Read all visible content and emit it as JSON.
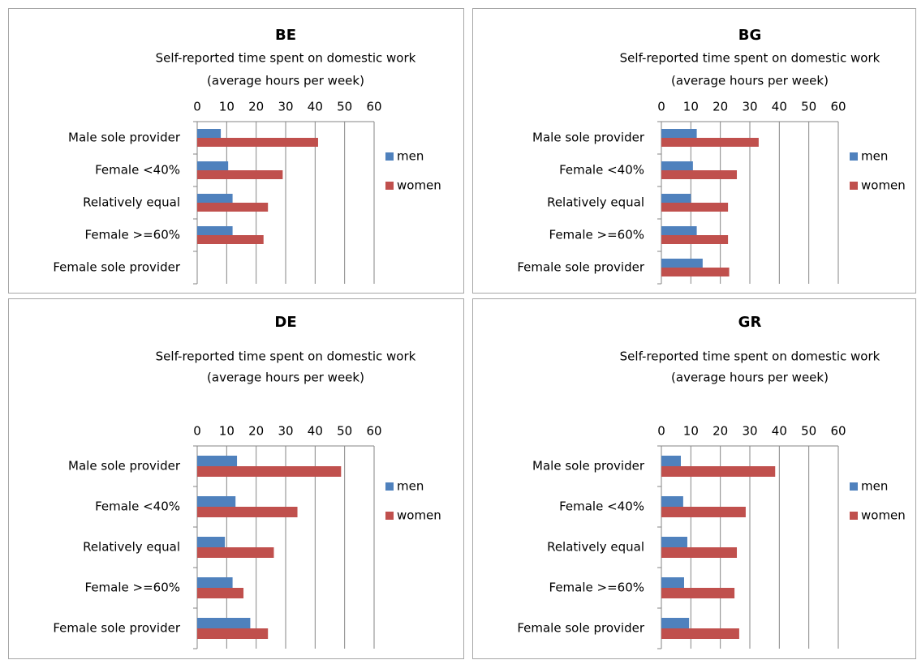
{
  "chart_data": [
    {
      "type": "bar",
      "orientation": "horizontal",
      "title": "BE",
      "subtitle": [
        "Self-reported time spent on domestic work",
        "(average hours per week)"
      ],
      "categories": [
        "Male sole provider",
        "Female <40%",
        "Relatively equal",
        "Female >=60%",
        "Female sole provider"
      ],
      "series": [
        {
          "name": "men",
          "color": "#4f81bd",
          "values": [
            8,
            10.5,
            12,
            12,
            null
          ]
        },
        {
          "name": "women",
          "color": "#c0504d",
          "values": [
            41,
            29,
            24,
            22.5,
            null
          ]
        }
      ],
      "xlim": [
        0,
        60
      ],
      "xticks": [
        0,
        10,
        20,
        30,
        40,
        50,
        60
      ],
      "grid": true,
      "legend": "right"
    },
    {
      "type": "bar",
      "orientation": "horizontal",
      "title": "BG",
      "subtitle": [
        "Self-reported time spent on domestic work",
        "(average hours per week)"
      ],
      "categories": [
        "Male sole provider",
        "Female <40%",
        "Relatively equal",
        "Female >=60%",
        "Female sole provider"
      ],
      "series": [
        {
          "name": "men",
          "color": "#4f81bd",
          "values": [
            12,
            10.7,
            10,
            12,
            14
          ]
        },
        {
          "name": "women",
          "color": "#c0504d",
          "values": [
            33,
            25.6,
            22.6,
            22.6,
            23
          ]
        }
      ],
      "xlim": [
        0,
        60
      ],
      "xticks": [
        0,
        10,
        20,
        30,
        40,
        50,
        60
      ],
      "grid": true,
      "legend": "right"
    },
    {
      "type": "bar",
      "orientation": "horizontal",
      "title": "DE",
      "subtitle": [
        "Self-reported time spent on domestic work",
        "(average hours per week)"
      ],
      "categories": [
        "Male sole provider",
        "Female <40%",
        "Relatively equal",
        "Female >=60%",
        "Female sole provider"
      ],
      "series": [
        {
          "name": "men",
          "color": "#4f81bd",
          "values": [
            13.5,
            13,
            9.4,
            12,
            18
          ]
        },
        {
          "name": "women",
          "color": "#c0504d",
          "values": [
            48.8,
            34,
            26,
            15.7,
            24
          ]
        }
      ],
      "xlim": [
        0,
        60
      ],
      "xticks": [
        0,
        10,
        20,
        30,
        40,
        50,
        60
      ],
      "grid": true,
      "legend": "right"
    },
    {
      "type": "bar",
      "orientation": "horizontal",
      "title": "GR",
      "subtitle": [
        "Self-reported time spent on domestic work",
        "(average hours per week)"
      ],
      "categories": [
        "Male sole provider",
        "Female <40%",
        "Relatively equal",
        "Female >=60%",
        "Female sole provider"
      ],
      "series": [
        {
          "name": "men",
          "color": "#4f81bd",
          "values": [
            6.6,
            7.4,
            8.8,
            7.7,
            9.4
          ]
        },
        {
          "name": "women",
          "color": "#c0504d",
          "values": [
            38.6,
            28.6,
            25.6,
            24.8,
            26.4
          ]
        }
      ],
      "xlim": [
        0,
        60
      ],
      "xticks": [
        0,
        10,
        20,
        30,
        40,
        50,
        60
      ],
      "grid": true,
      "legend": "right"
    }
  ]
}
